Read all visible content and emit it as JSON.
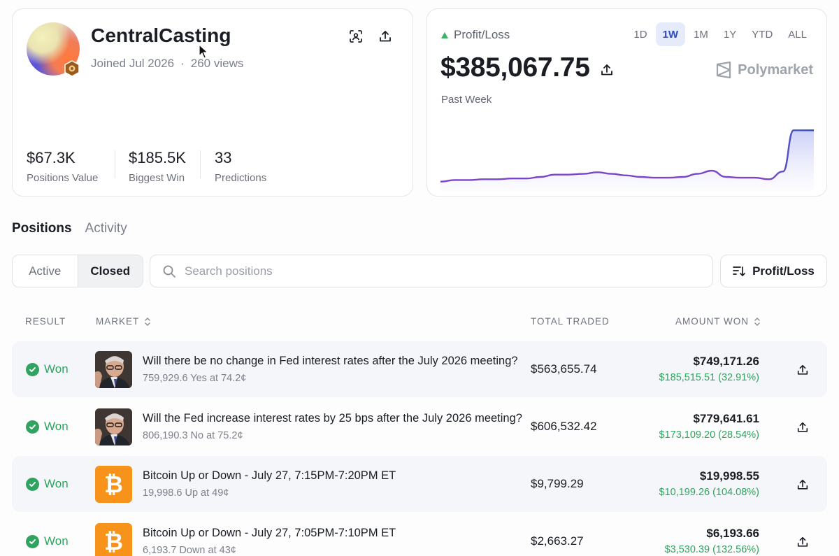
{
  "profile": {
    "username": "CentralCasting",
    "joined": "Joined Jul 2026",
    "views": "260 views",
    "stats": [
      {
        "value": "$67.3K",
        "label": "Positions Value"
      },
      {
        "value": "$185.5K",
        "label": "Biggest Win"
      },
      {
        "value": "33",
        "label": "Predictions"
      }
    ]
  },
  "pnl": {
    "label": "Profit/Loss",
    "amount": "$385,067.75",
    "period": "Past Week",
    "brand": "Polymarket",
    "ranges": [
      "1D",
      "1W",
      "1M",
      "1Y",
      "YTD",
      "ALL"
    ],
    "selected_range": "1W",
    "chart_data": {
      "type": "area",
      "series": [
        {
          "values": [
            12,
            14,
            14,
            15,
            15,
            16,
            16,
            18,
            21,
            21,
            22,
            24,
            22,
            20,
            18,
            17,
            17,
            18,
            22,
            26,
            18,
            17,
            17,
            15,
            25,
            78,
            78
          ]
        }
      ]
    }
  },
  "tabs": [
    "Positions",
    "Activity"
  ],
  "filters": {
    "segments": [
      "Active",
      "Closed"
    ],
    "selected": "Closed",
    "search_placeholder": "Search positions",
    "sort_label": "Profit/Loss"
  },
  "table": {
    "headers": {
      "result": "RESULT",
      "market": "MARKET",
      "total_traded": "TOTAL TRADED",
      "amount_won": "AMOUNT WON"
    },
    "rows": [
      {
        "result": "Won",
        "title": "Will there be no change in Fed interest rates after the July 2026 meeting?",
        "sub": "759,929.6 Yes at 74.2¢",
        "traded": "$563,655.74",
        "amount": "$749,171.26",
        "pnl": "$185,515.51 (32.91%)",
        "thumb": "fed"
      },
      {
        "result": "Won",
        "title": "Will the Fed increase interest rates by 25 bps after the July 2026 meeting?",
        "sub": "806,190.3 No at 75.2¢",
        "traded": "$606,532.42",
        "amount": "$779,641.61",
        "pnl": "$173,109.20 (28.54%)",
        "thumb": "fed"
      },
      {
        "result": "Won",
        "title": "Bitcoin Up or Down - July 27, 7:15PM-7:20PM ET",
        "sub": "19,998.6 Up at 49¢",
        "traded": "$9,799.29",
        "amount": "$19,998.55",
        "pnl": "$10,199.26 (104.08%)",
        "thumb": "bitcoin"
      },
      {
        "result": "Won",
        "title": "Bitcoin Up or Down - July 27, 7:05PM-7:10PM ET",
        "sub": "6,193.7 Down at 43¢",
        "traded": "$2,663.27",
        "amount": "$6,193.66",
        "pnl": "$3,530.39 (132.56%)",
        "thumb": "bitcoin"
      }
    ]
  },
  "colors": {
    "accent": "#2c49c8",
    "positive": "#2fa35f",
    "chart_line": "#7b45c9",
    "bitcoin": "#f7931a"
  }
}
